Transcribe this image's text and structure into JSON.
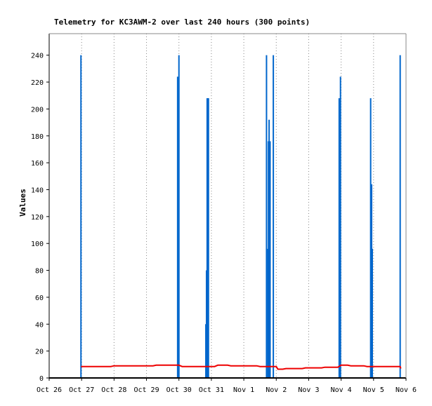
{
  "chart_data": {
    "type": "bar",
    "title": "Telemetry for KC3AWM-2 over last 240 hours (300 points)",
    "xlabel": "",
    "ylabel": "Values",
    "ylim": [
      0,
      256
    ],
    "yticks": [
      0,
      20,
      40,
      60,
      80,
      100,
      120,
      140,
      160,
      180,
      200,
      220,
      240
    ],
    "xlim": [
      "2024-10-26",
      "2024-11-06"
    ],
    "xticks": [
      "Oct 26",
      "Oct 27",
      "Oct 28",
      "Oct 29",
      "Oct 30",
      "Oct 31",
      "Nov 1",
      "Nov 2",
      "Nov 3",
      "Nov 4",
      "Nov 5",
      "Nov 6"
    ],
    "colors": {
      "bars": "#0066cc",
      "line": "#ee0000",
      "axis": "#000000"
    },
    "series": [
      {
        "type": "bar",
        "points": [
          {
            "x": 0.98,
            "y": 240
          },
          {
            "x": 3.96,
            "y": 224
          },
          {
            "x": 4.0,
            "y": 240
          },
          {
            "x": 4.83,
            "y": 40
          },
          {
            "x": 4.85,
            "y": 80
          },
          {
            "x": 4.87,
            "y": 208
          },
          {
            "x": 4.89,
            "y": 208
          },
          {
            "x": 4.91,
            "y": 208
          },
          {
            "x": 6.7,
            "y": 240
          },
          {
            "x": 6.74,
            "y": 96
          },
          {
            "x": 6.76,
            "y": 176
          },
          {
            "x": 6.78,
            "y": 192
          },
          {
            "x": 6.81,
            "y": 176
          },
          {
            "x": 6.91,
            "y": 240
          },
          {
            "x": 8.94,
            "y": 208
          },
          {
            "x": 8.98,
            "y": 224
          },
          {
            "x": 9.91,
            "y": 208
          },
          {
            "x": 9.94,
            "y": 144
          },
          {
            "x": 9.96,
            "y": 96
          },
          {
            "x": 10.82,
            "y": 240
          }
        ]
      },
      {
        "type": "line",
        "points": [
          {
            "x": 0.98,
            "y": 8.5
          },
          {
            "x": 1.9,
            "y": 8.5
          },
          {
            "x": 2.0,
            "y": 9.0
          },
          {
            "x": 3.2,
            "y": 9.0
          },
          {
            "x": 3.3,
            "y": 9.5
          },
          {
            "x": 4.0,
            "y": 9.5
          },
          {
            "x": 4.1,
            "y": 8.5
          },
          {
            "x": 5.1,
            "y": 8.5
          },
          {
            "x": 5.2,
            "y": 9.5
          },
          {
            "x": 5.5,
            "y": 9.5
          },
          {
            "x": 5.6,
            "y": 9.0
          },
          {
            "x": 6.4,
            "y": 9.0
          },
          {
            "x": 6.5,
            "y": 8.5
          },
          {
            "x": 7.0,
            "y": 8.5
          },
          {
            "x": 7.05,
            "y": 6.5
          },
          {
            "x": 7.2,
            "y": 6.5
          },
          {
            "x": 7.3,
            "y": 7.0
          },
          {
            "x": 7.8,
            "y": 7.0
          },
          {
            "x": 7.9,
            "y": 7.5
          },
          {
            "x": 8.4,
            "y": 7.5
          },
          {
            "x": 8.5,
            "y": 8.0
          },
          {
            "x": 8.9,
            "y": 8.0
          },
          {
            "x": 9.0,
            "y": 9.5
          },
          {
            "x": 9.2,
            "y": 9.5
          },
          {
            "x": 9.3,
            "y": 9.0
          },
          {
            "x": 9.7,
            "y": 9.0
          },
          {
            "x": 9.8,
            "y": 8.5
          },
          {
            "x": 10.82,
            "y": 8.5
          },
          {
            "x": 10.84,
            "y": 7.0
          }
        ]
      }
    ]
  }
}
